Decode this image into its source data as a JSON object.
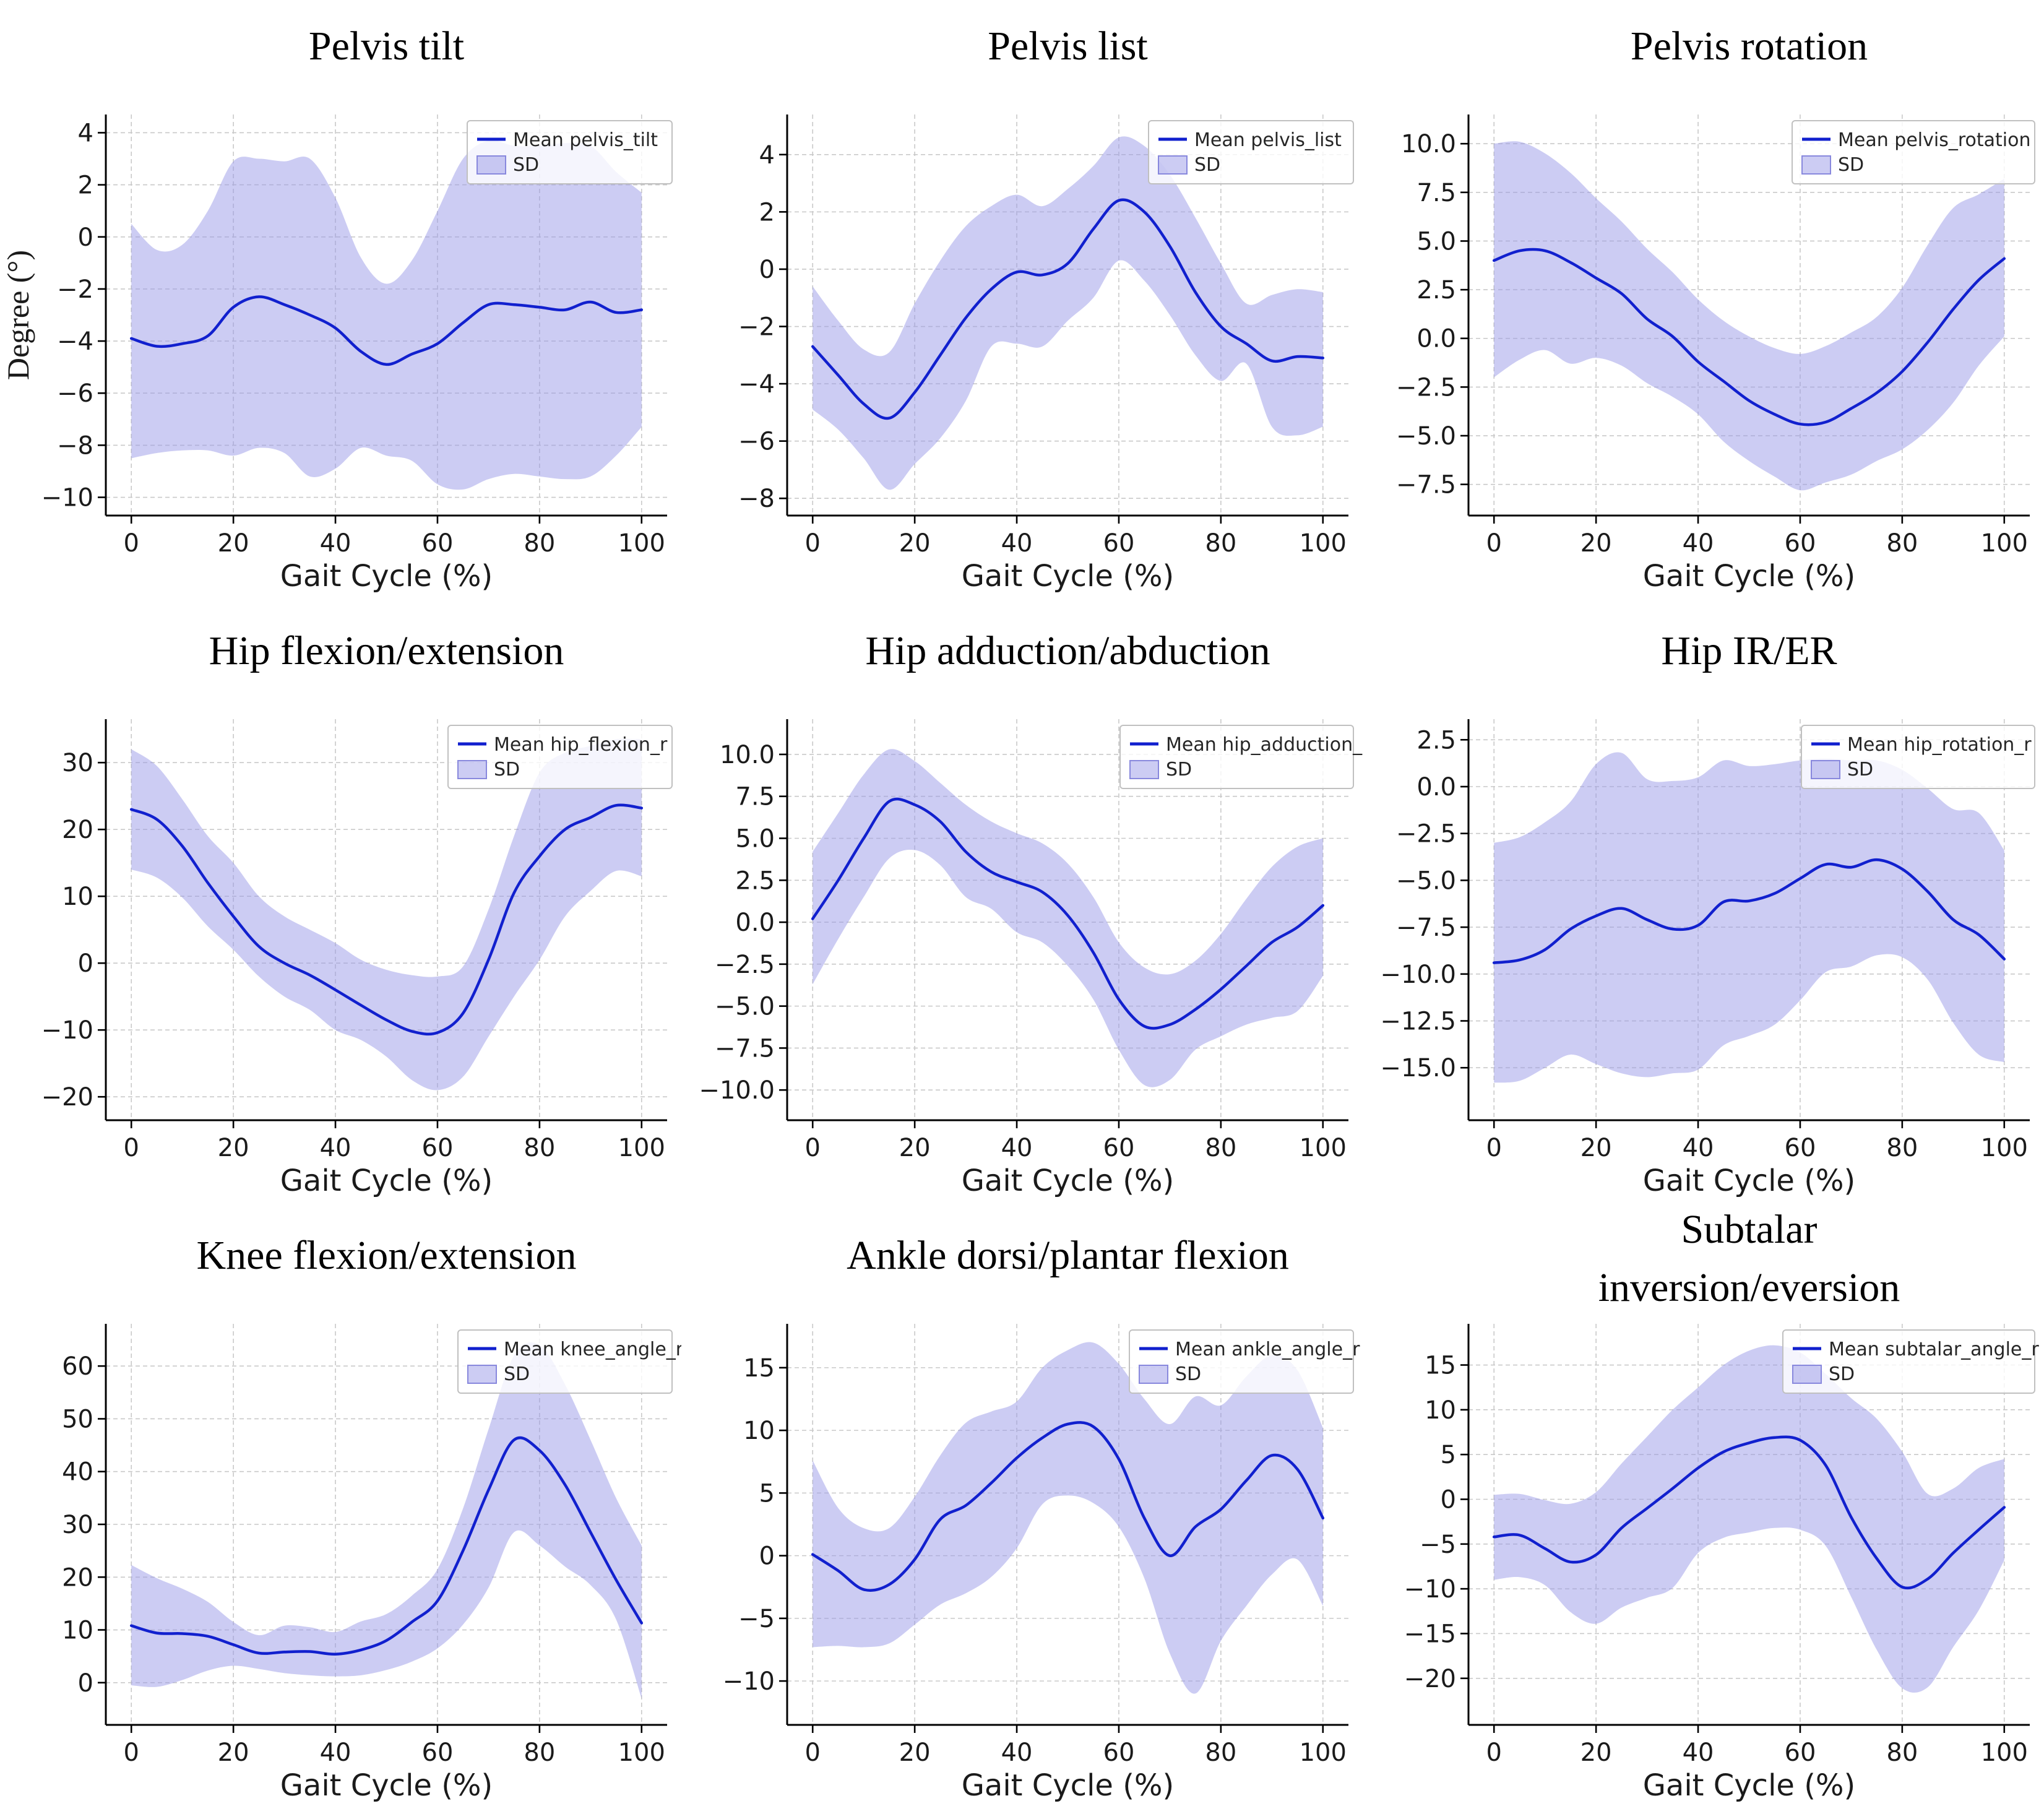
{
  "figure_title": "",
  "colors": {
    "mean_line": "#1120ce",
    "sd_fill": "#9a9ae8",
    "grid": "#c9c9c9",
    "axis": "#000000",
    "tick_label": "#1a1a1a",
    "title_text": "#000000",
    "legend_border": "#c0c0c0",
    "legend_text": "#262626",
    "background": "#ffffff"
  },
  "chart_data": [
    {
      "id": "pelvis-tilt",
      "type": "line",
      "title": [
        "Pelvis  tilt"
      ],
      "xlabel": "Gait Cycle (%)",
      "ylabel": "Degree (°)",
      "legend": [
        "Mean pelvis_tilt",
        "SD"
      ],
      "legend_position": "upper right",
      "grid": true,
      "xlim": [
        -5,
        105
      ],
      "ylim": [
        -10.7,
        4.7
      ],
      "xticks": [
        0,
        20,
        40,
        60,
        80,
        100
      ],
      "yticks": {
        "values": [
          4,
          2,
          0,
          -2,
          -4,
          -6,
          -8,
          -10
        ],
        "labels": [
          "4",
          "2",
          "0",
          "−2",
          "−4",
          "−6",
          "−8",
          "−10"
        ]
      },
      "x": [
        0,
        5,
        10,
        15,
        20,
        25,
        30,
        35,
        40,
        45,
        50,
        55,
        60,
        65,
        70,
        75,
        80,
        85,
        90,
        95,
        100
      ],
      "mean": [
        -3.9,
        -4.2,
        -4.1,
        -3.8,
        -2.7,
        -2.3,
        -2.6,
        -3.0,
        -3.5,
        -4.4,
        -4.9,
        -4.5,
        -4.1,
        -3.3,
        -2.6,
        -2.6,
        -2.7,
        -2.8,
        -2.5,
        -2.9,
        -2.8
      ],
      "upper": [
        0.5,
        -0.5,
        -0.3,
        1.0,
        2.9,
        3.0,
        2.9,
        3.0,
        1.5,
        -0.8,
        -1.8,
        -0.9,
        1.0,
        3.0,
        3.7,
        3.5,
        3.5,
        3.6,
        3.5,
        2.5,
        1.7
      ],
      "lower": [
        -8.5,
        -8.3,
        -8.2,
        -8.2,
        -8.4,
        -8.1,
        -8.3,
        -9.2,
        -8.9,
        -8.1,
        -8.4,
        -8.6,
        -9.5,
        -9.7,
        -9.3,
        -9.1,
        -9.2,
        -9.3,
        -9.2,
        -8.4,
        -7.3
      ]
    },
    {
      "id": "pelvis-list",
      "type": "line",
      "title": [
        "Pelvis list"
      ],
      "xlabel": "Gait Cycle (%)",
      "ylabel": "",
      "legend": [
        "Mean pelvis_list",
        "SD"
      ],
      "legend_position": "upper right",
      "grid": true,
      "xlim": [
        -5,
        105
      ],
      "ylim": [
        -8.6,
        5.4
      ],
      "xticks": [
        0,
        20,
        40,
        60,
        80,
        100
      ],
      "yticks": {
        "values": [
          4,
          2,
          0,
          -2,
          -4,
          -6,
          -8
        ],
        "labels": [
          "4",
          "2",
          "0",
          "−2",
          "−4",
          "−6",
          "−8"
        ]
      },
      "x": [
        0,
        5,
        10,
        15,
        20,
        25,
        30,
        35,
        40,
        45,
        50,
        55,
        60,
        65,
        70,
        75,
        80,
        85,
        90,
        95,
        100
      ],
      "mean": [
        -2.7,
        -3.7,
        -4.7,
        -5.2,
        -4.3,
        -3.0,
        -1.7,
        -0.7,
        -0.1,
        -0.2,
        0.2,
        1.4,
        2.4,
        2.0,
        0.8,
        -0.8,
        -2.0,
        -2.6,
        -3.2,
        -3.05,
        -3.1
      ],
      "upper": [
        -0.6,
        -1.8,
        -2.8,
        -2.9,
        -1.2,
        0.3,
        1.5,
        2.2,
        2.6,
        2.2,
        2.8,
        3.6,
        4.6,
        4.3,
        3.3,
        1.8,
        0.2,
        -1.2,
        -0.9,
        -0.7,
        -0.8
      ],
      "lower": [
        -4.9,
        -5.6,
        -6.6,
        -7.7,
        -6.8,
        -5.9,
        -4.6,
        -2.7,
        -2.6,
        -2.7,
        -1.8,
        -1.0,
        0.3,
        -0.4,
        -1.6,
        -3.0,
        -3.9,
        -3.3,
        -5.5,
        -5.8,
        -5.5
      ]
    },
    {
      "id": "pelvis-rotation",
      "type": "line",
      "title": [
        "Pelvis rotation"
      ],
      "xlabel": "Gait Cycle (%)",
      "ylabel": "",
      "legend": [
        "Mean pelvis_rotation",
        "SD"
      ],
      "legend_position": "upper right",
      "grid": true,
      "xlim": [
        -5,
        105
      ],
      "ylim": [
        -9.1,
        11.5
      ],
      "xticks": [
        0,
        20,
        40,
        60,
        80,
        100
      ],
      "yticks": {
        "values": [
          10.0,
          7.5,
          5.0,
          2.5,
          0.0,
          -2.5,
          -5.0,
          -7.5
        ],
        "labels": [
          "10.0",
          "7.5",
          "5.0",
          "2.5",
          "0.0",
          "−2.5",
          "−5.0",
          "−7.5"
        ]
      },
      "x": [
        0,
        5,
        10,
        15,
        20,
        25,
        30,
        35,
        40,
        45,
        50,
        55,
        60,
        65,
        70,
        75,
        80,
        85,
        90,
        95,
        100
      ],
      "mean": [
        4.0,
        4.5,
        4.5,
        3.9,
        3.1,
        2.3,
        1.0,
        0.1,
        -1.2,
        -2.2,
        -3.2,
        -3.9,
        -4.4,
        -4.3,
        -3.6,
        -2.8,
        -1.7,
        -0.2,
        1.5,
        3.0,
        4.1
      ],
      "upper": [
        10.0,
        10.1,
        9.5,
        8.5,
        7.2,
        6.0,
        4.6,
        3.4,
        2.0,
        0.9,
        0.1,
        -0.5,
        -0.8,
        -0.4,
        0.3,
        1.1,
        2.6,
        4.8,
        6.7,
        7.4,
        8.2
      ],
      "lower": [
        -2.0,
        -1.1,
        -0.6,
        -1.3,
        -1.0,
        -1.4,
        -2.3,
        -3.0,
        -3.9,
        -5.3,
        -6.3,
        -7.1,
        -7.8,
        -7.4,
        -7.0,
        -6.3,
        -5.7,
        -4.7,
        -3.3,
        -1.4,
        0.1
      ]
    },
    {
      "id": "hip-flexion",
      "type": "line",
      "title": [
        "Hip flexion/extension"
      ],
      "xlabel": "Gait Cycle (%)",
      "ylabel": "",
      "legend": [
        "Mean hip_flexion_r",
        "SD"
      ],
      "legend_position": "upper right",
      "grid": true,
      "xlim": [
        -5,
        105
      ],
      "ylim": [
        -23.5,
        36.5
      ],
      "xticks": [
        0,
        20,
        40,
        60,
        80,
        100
      ],
      "yticks": {
        "values": [
          30,
          20,
          10,
          0,
          -10,
          -20
        ],
        "labels": [
          "30",
          "20",
          "10",
          "0",
          "−10",
          "−20"
        ]
      },
      "x": [
        0,
        5,
        10,
        15,
        20,
        25,
        30,
        35,
        40,
        45,
        50,
        55,
        60,
        65,
        70,
        75,
        80,
        85,
        90,
        95,
        100
      ],
      "mean": [
        23.0,
        21.5,
        17.5,
        12.0,
        7.0,
        2.5,
        0.0,
        -1.8,
        -4.0,
        -6.3,
        -8.5,
        -10.2,
        -10.4,
        -7.5,
        0.5,
        10.5,
        16.0,
        20.0,
        21.8,
        23.6,
        23.2
      ],
      "upper": [
        32.0,
        29.5,
        24.5,
        19.0,
        15.0,
        10.0,
        7.0,
        5.0,
        3.0,
        0.5,
        -1.0,
        -1.8,
        -2.0,
        -0.5,
        8.0,
        19.0,
        28.5,
        31.5,
        32.5,
        33.5,
        33.5
      ],
      "lower": [
        14.0,
        12.8,
        9.8,
        5.5,
        2.0,
        -2.0,
        -5.0,
        -7.0,
        -10.0,
        -11.5,
        -14.0,
        -17.5,
        -19.0,
        -17.0,
        -11.0,
        -5.0,
        0.5,
        7.0,
        10.8,
        13.8,
        13.0
      ]
    },
    {
      "id": "hip-adduction",
      "type": "line",
      "title": [
        "Hip adduction/abduction"
      ],
      "xlabel": "Gait Cycle (%)",
      "ylabel": "",
      "legend": [
        "Mean hip_adduction_",
        "SD"
      ],
      "legend_position": "upper right",
      "grid": true,
      "xlim": [
        -5,
        105
      ],
      "ylim": [
        -11.8,
        12.1
      ],
      "xticks": [
        0,
        20,
        40,
        60,
        80,
        100
      ],
      "yticks": {
        "values": [
          10.0,
          7.5,
          5.0,
          2.5,
          0.0,
          -2.5,
          -5.0,
          -7.5,
          -10.0
        ],
        "labels": [
          "10.0",
          "7.5",
          "5.0",
          "2.5",
          "0.0",
          "−2.5",
          "−5.0",
          "−7.5",
          "−10.0"
        ]
      },
      "x": [
        0,
        5,
        10,
        15,
        20,
        25,
        30,
        35,
        40,
        45,
        50,
        55,
        60,
        65,
        70,
        75,
        80,
        85,
        90,
        95,
        100
      ],
      "mean": [
        0.2,
        2.5,
        5.0,
        7.2,
        7.0,
        6.0,
        4.2,
        3.0,
        2.4,
        1.8,
        0.4,
        -1.8,
        -4.6,
        -6.2,
        -6.1,
        -5.2,
        -4.0,
        -2.6,
        -1.2,
        -0.3,
        1.0
      ],
      "upper": [
        4.2,
        6.5,
        8.8,
        10.3,
        9.6,
        8.3,
        7.0,
        6.0,
        5.3,
        4.7,
        3.5,
        1.5,
        -1.2,
        -2.7,
        -3.1,
        -2.3,
        -0.7,
        1.4,
        3.3,
        4.5,
        5.0
      ],
      "lower": [
        -3.7,
        -1.0,
        1.5,
        3.8,
        4.3,
        3.4,
        1.5,
        0.8,
        -0.6,
        -1.2,
        -2.6,
        -4.6,
        -7.6,
        -9.7,
        -9.4,
        -7.6,
        -6.8,
        -6.1,
        -5.7,
        -5.3,
        -3.2
      ]
    },
    {
      "id": "hip-ir-er",
      "type": "line",
      "title": [
        "Hip IR/ER"
      ],
      "xlabel": "Gait Cycle (%)",
      "ylabel": "",
      "legend": [
        "Mean hip_rotation_r",
        "SD"
      ],
      "legend_position": "upper right",
      "grid": true,
      "xlim": [
        -5,
        105
      ],
      "ylim": [
        -17.8,
        3.6
      ],
      "xticks": [
        0,
        20,
        40,
        60,
        80,
        100
      ],
      "yticks": {
        "values": [
          2.5,
          0.0,
          -2.5,
          -5.0,
          -7.5,
          -10.0,
          -12.5,
          -15.0
        ],
        "labels": [
          "2.5",
          "0.0",
          "−2.5",
          "−5.0",
          "−7.5",
          "−10.0",
          "−12.5",
          "−15.0"
        ]
      },
      "x": [
        0,
        5,
        10,
        15,
        20,
        25,
        30,
        35,
        40,
        45,
        50,
        55,
        60,
        65,
        70,
        75,
        80,
        85,
        90,
        95,
        100
      ],
      "mean": [
        -9.4,
        -9.25,
        -8.7,
        -7.6,
        -6.9,
        -6.5,
        -7.1,
        -7.6,
        -7.4,
        -6.15,
        -6.1,
        -5.7,
        -4.9,
        -4.15,
        -4.3,
        -3.9,
        -4.4,
        -5.6,
        -7.1,
        -7.9,
        -9.2
      ],
      "upper": [
        -3.0,
        -2.7,
        -1.9,
        -0.8,
        1.2,
        1.8,
        0.4,
        0.3,
        0.5,
        1.4,
        1.1,
        1.2,
        1.4,
        1.5,
        1.4,
        1.4,
        0.9,
        -0.1,
        -1.2,
        -1.4,
        -3.4
      ],
      "lower": [
        -15.8,
        -15.7,
        -15.0,
        -14.3,
        -14.8,
        -15.3,
        -15.5,
        -15.3,
        -15.1,
        -13.8,
        -13.3,
        -12.7,
        -11.4,
        -9.9,
        -9.6,
        -9.0,
        -9.1,
        -10.3,
        -12.6,
        -14.3,
        -14.7
      ]
    },
    {
      "id": "knee-flexion",
      "type": "line",
      "title": [
        "Knee flexion/extension"
      ],
      "xlabel": "Gait Cycle (%)",
      "ylabel": "",
      "legend": [
        "Mean knee_angle_r",
        "SD"
      ],
      "legend_position": "upper right",
      "grid": true,
      "xlim": [
        -5,
        105
      ],
      "ylim": [
        -8,
        68
      ],
      "xticks": [
        0,
        20,
        40,
        60,
        80,
        100
      ],
      "yticks": {
        "values": [
          60,
          50,
          40,
          30,
          20,
          10,
          0
        ],
        "labels": [
          "60",
          "50",
          "40",
          "30",
          "20",
          "10",
          "0"
        ]
      },
      "x": [
        0,
        5,
        10,
        15,
        20,
        25,
        30,
        35,
        40,
        45,
        50,
        55,
        60,
        65,
        70,
        75,
        80,
        85,
        90,
        95,
        100
      ],
      "mean": [
        10.8,
        9.4,
        9.3,
        8.8,
        7.2,
        5.6,
        5.8,
        5.9,
        5.4,
        6.2,
        8.0,
        11.5,
        15.5,
        25.0,
        36.5,
        46.0,
        44.0,
        37.5,
        28.5,
        19.5,
        11.3
      ],
      "upper": [
        22.3,
        19.8,
        17.8,
        15.3,
        11.5,
        9.0,
        10.8,
        10.5,
        9.6,
        11.6,
        13.0,
        16.5,
        21.5,
        33.0,
        48.0,
        62.0,
        64.0,
        56.5,
        46.0,
        35.0,
        26.0
      ],
      "lower": [
        -0.5,
        -0.8,
        0.5,
        2.3,
        3.2,
        2.6,
        1.8,
        1.4,
        1.2,
        1.4,
        2.4,
        4.0,
        6.5,
        11.0,
        18.0,
        28.5,
        26.0,
        22.0,
        18.5,
        12.0,
        -3.0
      ]
    },
    {
      "id": "ankle-flexion",
      "type": "line",
      "title": [
        "Ankle dorsi/plantar flexion"
      ],
      "xlabel": "Gait Cycle (%)",
      "ylabel": "",
      "legend": [
        "Mean ankle_angle_r",
        "SD"
      ],
      "legend_position": "upper right",
      "grid": true,
      "xlim": [
        -5,
        105
      ],
      "ylim": [
        -13.5,
        18.5
      ],
      "xticks": [
        0,
        20,
        40,
        60,
        80,
        100
      ],
      "yticks": {
        "values": [
          15,
          10,
          5,
          0,
          -5,
          -10
        ],
        "labels": [
          "15",
          "10",
          "5",
          "0",
          "−5",
          "−10"
        ]
      },
      "x": [
        0,
        5,
        10,
        15,
        20,
        25,
        30,
        35,
        40,
        45,
        50,
        55,
        60,
        65,
        70,
        75,
        80,
        85,
        90,
        95,
        100
      ],
      "mean": [
        0.1,
        -1.2,
        -2.7,
        -2.3,
        -0.3,
        2.9,
        4.0,
        5.8,
        7.8,
        9.4,
        10.5,
        10.3,
        7.7,
        3.0,
        0.0,
        2.3,
        3.7,
        6.0,
        8.0,
        6.9,
        3.0
      ],
      "upper": [
        7.6,
        3.8,
        2.2,
        2.2,
        4.7,
        8.0,
        10.6,
        11.5,
        12.3,
        15.0,
        16.4,
        17.0,
        15.3,
        12.5,
        10.5,
        12.7,
        12.0,
        14.3,
        16.0,
        14.8,
        10.2
      ],
      "lower": [
        -7.3,
        -7.2,
        -7.3,
        -7.0,
        -5.5,
        -3.9,
        -3.0,
        -1.7,
        0.6,
        4.1,
        4.8,
        4.2,
        2.3,
        -1.8,
        -7.8,
        -11.0,
        -6.8,
        -4.0,
        -1.5,
        -0.3,
        -4.0
      ]
    },
    {
      "id": "subtalar",
      "type": "line",
      "title": [
        "Subtalar",
        "inversion/eversion"
      ],
      "xlabel": "Gait Cycle (%)",
      "ylabel": "",
      "legend": [
        "Mean subtalar_angle_r",
        "SD"
      ],
      "legend_position": "upper right",
      "grid": true,
      "xlim": [
        -5,
        105
      ],
      "ylim": [
        -25.2,
        19.6
      ],
      "xticks": [
        0,
        20,
        40,
        60,
        80,
        100
      ],
      "yticks": {
        "values": [
          15,
          10,
          5,
          0,
          -5,
          -10,
          -15,
          -20
        ],
        "labels": [
          "15",
          "10",
          "5",
          "0",
          "−5",
          "−10",
          "−15",
          "−20"
        ]
      },
      "x": [
        0,
        5,
        10,
        15,
        20,
        25,
        30,
        35,
        40,
        45,
        50,
        55,
        60,
        65,
        70,
        75,
        80,
        85,
        90,
        95,
        100
      ],
      "mean": [
        -4.2,
        -4.0,
        -5.5,
        -7.0,
        -6.2,
        -3.2,
        -1.0,
        1.2,
        3.5,
        5.3,
        6.3,
        6.9,
        6.6,
        3.8,
        -2.0,
        -6.6,
        -9.8,
        -8.9,
        -6.0,
        -3.4,
        -0.9
      ],
      "upper": [
        0.5,
        0.6,
        -0.1,
        -0.5,
        0.8,
        4.0,
        7.0,
        10.0,
        12.5,
        15.0,
        16.6,
        17.2,
        16.4,
        14.0,
        11.3,
        9.0,
        5.3,
        0.6,
        1.2,
        3.5,
        4.5
      ],
      "lower": [
        -9.0,
        -8.7,
        -9.6,
        -12.6,
        -13.9,
        -12.1,
        -11.0,
        -9.9,
        -6.0,
        -4.3,
        -3.7,
        -3.2,
        -3.4,
        -5.2,
        -10.9,
        -16.8,
        -21.1,
        -21.0,
        -16.5,
        -12.4,
        -6.8
      ]
    }
  ]
}
